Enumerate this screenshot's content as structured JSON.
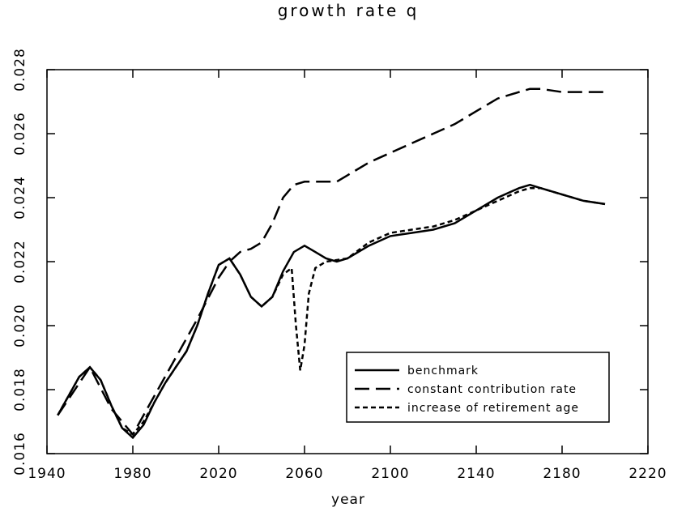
{
  "chart_data": {
    "type": "line",
    "title": "growth rate q",
    "xlabel": "year",
    "xlim": [
      1940,
      2220
    ],
    "xticks": [
      1940,
      1980,
      2020,
      2060,
      2100,
      2140,
      2180,
      2220
    ],
    "ylim": [
      0.016,
      0.028
    ],
    "yticks": [
      0.016,
      0.018,
      {
        "value": 0.02,
        "label": "0.020"
      },
      0.022,
      0.024,
      0.026,
      0.028
    ],
    "legend": "lower right",
    "series": [
      {
        "name": "benchmark",
        "color": "#000000",
        "dash": "solid",
        "x": [
          1945,
          1955,
          1960,
          1965,
          1970,
          1975,
          1980,
          1985,
          1990,
          1995,
          2000,
          2005,
          2010,
          2015,
          2020,
          2025,
          2030,
          2035,
          2040,
          2045,
          2050,
          2055,
          2060,
          2065,
          2070,
          2075,
          2080,
          2090,
          2100,
          2110,
          2120,
          2130,
          2140,
          2150,
          2160,
          2165,
          2170,
          2180,
          2190,
          2200
        ],
        "values": [
          0.0172,
          0.0184,
          0.0187,
          0.0183,
          0.0175,
          0.0168,
          0.0165,
          0.0169,
          0.0176,
          0.0182,
          0.0187,
          0.0192,
          0.02,
          0.021,
          0.0219,
          0.0221,
          0.0216,
          0.0209,
          0.0206,
          0.0209,
          0.0217,
          0.0223,
          0.0225,
          0.0223,
          0.0221,
          0.022,
          0.0221,
          0.0225,
          0.0228,
          0.0229,
          0.023,
          0.0232,
          0.0236,
          0.024,
          0.0243,
          0.0244,
          0.0243,
          0.0241,
          0.0239,
          0.0238
        ]
      },
      {
        "name": "constant contribution rate",
        "color": "#000000",
        "dash": "long",
        "x": [
          1945,
          1960,
          1970,
          1980,
          1990,
          2000,
          2010,
          2020,
          2025,
          2030,
          2035,
          2040,
          2045,
          2050,
          2055,
          2060,
          2070,
          2075,
          2080,
          2090,
          2100,
          2110,
          2120,
          2130,
          2140,
          2150,
          2160,
          2165,
          2170,
          2180,
          2190,
          2200
        ],
        "values": [
          0.0172,
          0.0187,
          0.0174,
          0.0166,
          0.0178,
          0.019,
          0.0202,
          0.0215,
          0.022,
          0.0223,
          0.0224,
          0.0226,
          0.0232,
          0.024,
          0.0244,
          0.0245,
          0.0245,
          0.0245,
          0.0247,
          0.0251,
          0.0254,
          0.0257,
          0.026,
          0.0263,
          0.0267,
          0.0271,
          0.0273,
          0.0274,
          0.0274,
          0.0273,
          0.0273,
          0.0273
        ]
      },
      {
        "name": "increase of retirement age",
        "color": "#000000",
        "dash": "short",
        "x": [
          1945,
          1955,
          1960,
          1965,
          1970,
          1975,
          1980,
          1985,
          1990,
          1995,
          2000,
          2005,
          2010,
          2015,
          2020,
          2025,
          2030,
          2035,
          2040,
          2045,
          2050,
          2052,
          2054,
          2056,
          2058,
          2060,
          2062,
          2065,
          2070,
          2080,
          2090,
          2100,
          2110,
          2120,
          2130,
          2140,
          2150,
          2160,
          2165,
          2170,
          2180,
          2190,
          2200
        ],
        "values": [
          0.0172,
          0.0184,
          0.0187,
          0.0183,
          0.0175,
          0.0168,
          0.0166,
          0.017,
          0.0176,
          0.0182,
          0.0187,
          0.0192,
          0.02,
          0.021,
          0.0219,
          0.0221,
          0.0216,
          0.0209,
          0.0206,
          0.0209,
          0.0216,
          0.0217,
          0.0218,
          0.02,
          0.0186,
          0.0194,
          0.021,
          0.0218,
          0.022,
          0.0221,
          0.0226,
          0.0229,
          0.023,
          0.0231,
          0.0233,
          0.0236,
          0.0239,
          0.0242,
          0.0243,
          0.0243,
          0.0241,
          0.0239,
          0.0238
        ]
      }
    ]
  }
}
